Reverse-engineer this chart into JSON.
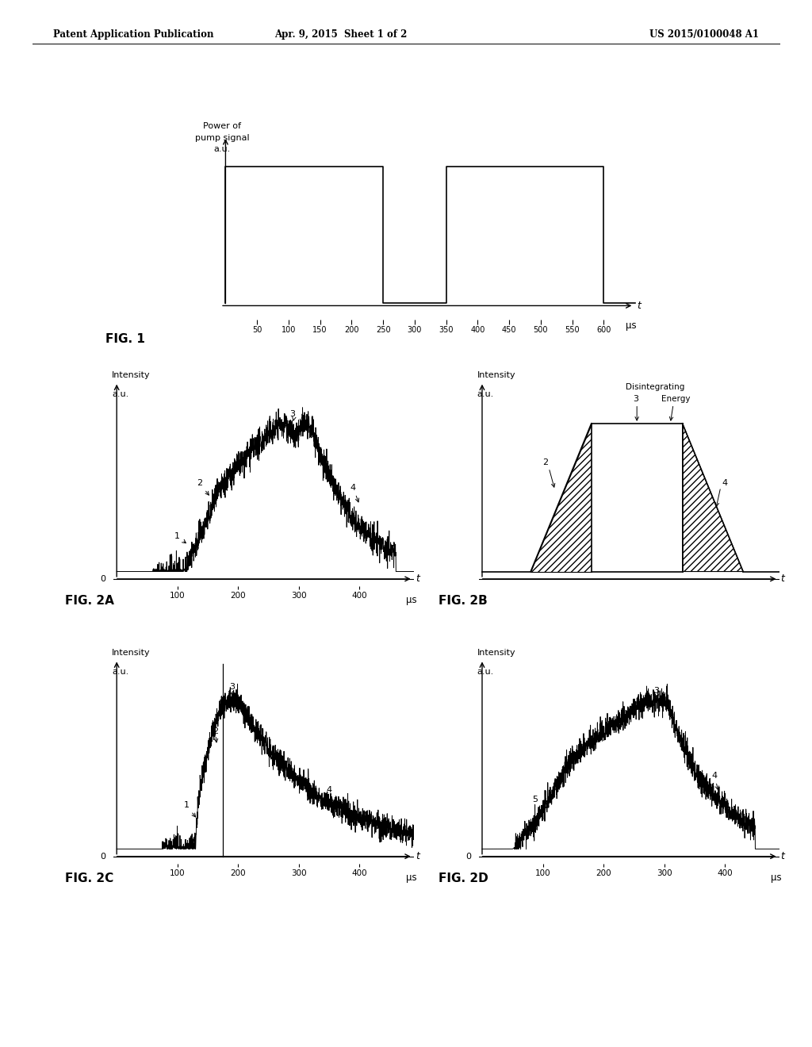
{
  "bg_color": "#ffffff",
  "header_left": "Patent Application Publication",
  "header_mid": "Apr. 9, 2015  Sheet 1 of 2",
  "header_right": "US 2015/0100048 A1",
  "fig1_title": "FIG. 1",
  "fig2a_title": "FIG. 2A",
  "fig2b_title": "FIG. 2B",
  "fig2c_title": "FIG. 2C",
  "fig2d_title": "FIG. 2D"
}
